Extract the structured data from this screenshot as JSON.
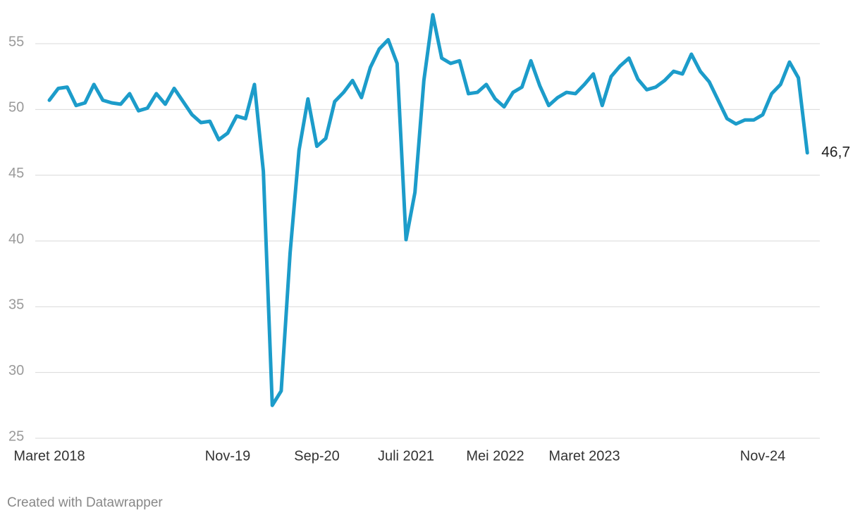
{
  "chart_data": {
    "type": "line",
    "categories": [
      "Maret 2018",
      null,
      null,
      null,
      null,
      null,
      null,
      null,
      null,
      null,
      null,
      null,
      null,
      null,
      null,
      null,
      null,
      null,
      null,
      null,
      "Nov-19",
      null,
      null,
      null,
      null,
      null,
      null,
      null,
      null,
      null,
      "Sep-20",
      null,
      null,
      null,
      null,
      null,
      null,
      null,
      null,
      null,
      "Juli 2021",
      null,
      null,
      null,
      null,
      null,
      null,
      null,
      null,
      null,
      "Mei 2022",
      null,
      null,
      null,
      null,
      null,
      null,
      null,
      null,
      null,
      "Maret 2023",
      null,
      null,
      null,
      null,
      null,
      null,
      null,
      null,
      null,
      null,
      null,
      null,
      null,
      null,
      null,
      null,
      null,
      null,
      null,
      "Nov-24",
      null,
      null,
      null,
      null,
      null
    ],
    "series": [
      {
        "color": "#1c9cca",
        "values": [
          50.7,
          51.6,
          51.7,
          50.3,
          50.5,
          51.9,
          50.7,
          50.5,
          50.4,
          51.2,
          49.9,
          50.1,
          51.2,
          50.4,
          51.6,
          50.6,
          49.6,
          49.0,
          49.1,
          47.7,
          48.2,
          49.5,
          49.3,
          51.9,
          45.3,
          27.5,
          28.6,
          39.1,
          46.9,
          50.8,
          47.2,
          47.8,
          50.6,
          51.3,
          52.2,
          50.9,
          53.2,
          54.6,
          55.3,
          53.5,
          40.1,
          43.7,
          52.2,
          57.2,
          53.9,
          53.5,
          53.7,
          51.2,
          51.3,
          51.9,
          50.8,
          50.2,
          51.3,
          51.7,
          53.7,
          51.8,
          50.3,
          50.9,
          51.3,
          51.2,
          51.9,
          52.7,
          50.3,
          52.5,
          53.3,
          53.9,
          52.3,
          51.5,
          51.7,
          52.2,
          52.9,
          52.7,
          54.2,
          52.9,
          52.1,
          50.7,
          49.3,
          48.9,
          49.2,
          49.2,
          49.6,
          51.2,
          51.9,
          53.6,
          52.4,
          46.7
        ],
        "value_labels": [
          null,
          null,
          null,
          null,
          null,
          null,
          null,
          null,
          null,
          null,
          null,
          null,
          null,
          null,
          null,
          null,
          null,
          null,
          null,
          null,
          null,
          null,
          null,
          null,
          null,
          null,
          null,
          null,
          null,
          null,
          null,
          null,
          null,
          null,
          null,
          null,
          null,
          null,
          null,
          null,
          null,
          null,
          null,
          null,
          null,
          null,
          null,
          null,
          null,
          null,
          null,
          null,
          null,
          null,
          null,
          null,
          null,
          null,
          null,
          null,
          null,
          null,
          null,
          null,
          null,
          null,
          null,
          null,
          null,
          null,
          null,
          null,
          null,
          null,
          null,
          null,
          null,
          null,
          null,
          null,
          null,
          null,
          null,
          null,
          null,
          "46,7"
        ]
      }
    ],
    "ylim": [
      25,
      55
    ],
    "yticks": [
      25,
      30,
      35,
      40,
      45,
      50,
      55
    ],
    "grid": true,
    "credit": "Created with Datawrapper"
  }
}
